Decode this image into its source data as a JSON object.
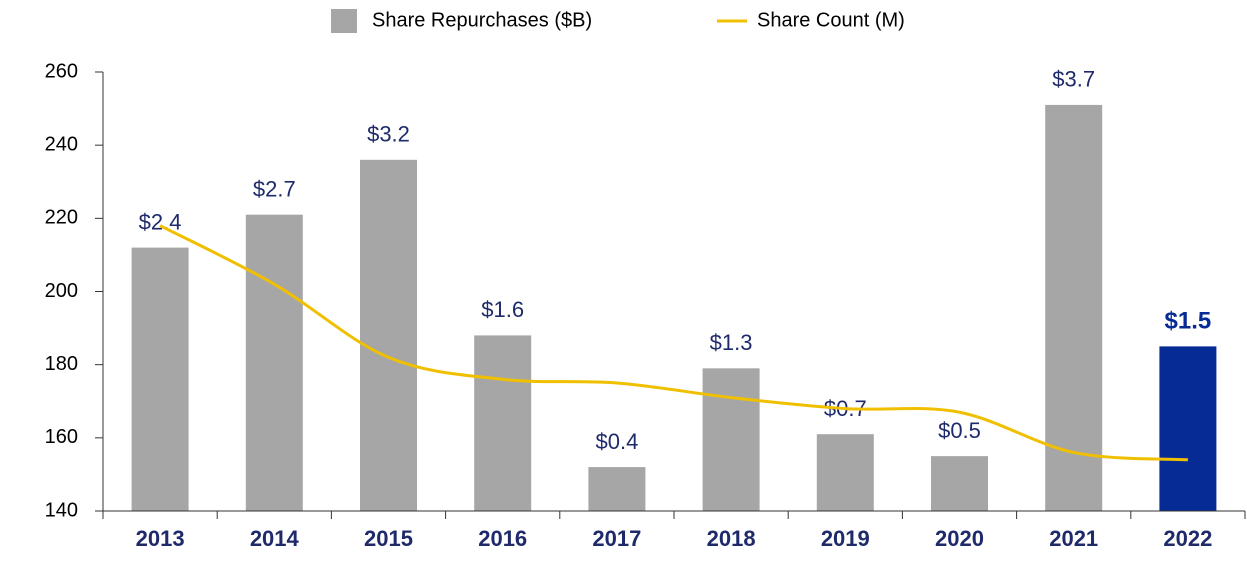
{
  "chart_data": {
    "type": "bar-line",
    "categories": [
      "2013",
      "2014",
      "2015",
      "2016",
      "2017",
      "2018",
      "2019",
      "2020",
      "2021",
      "2022"
    ],
    "series": [
      {
        "name": "Share Repurchases ($B)",
        "type": "bar",
        "axis": "y2",
        "color": "#a6a6a6",
        "highlight_color": "#062b94",
        "highlight": 9,
        "values": [
          2.4,
          2.7,
          3.2,
          1.6,
          0.4,
          1.3,
          0.7,
          0.5,
          3.7,
          1.5
        ],
        "value_labels": [
          "$2.4",
          "$2.7",
          "$3.2",
          "$1.6",
          "$0.4",
          "$1.3",
          "$0.7",
          "$0.5",
          "$3.7",
          "$1.5"
        ]
      },
      {
        "name": "Share Count (M)",
        "type": "line",
        "axis": "y",
        "color": "#f0c000",
        "values": [
          218,
          202,
          182,
          176,
          175,
          171,
          168,
          167,
          156,
          154
        ]
      }
    ],
    "ylim": [
      140,
      260
    ],
    "yticks": [
      140,
      160,
      180,
      200,
      220,
      240,
      260
    ],
    "y2lim": [
      0,
      4
    ],
    "grid": false,
    "legend": "top"
  }
}
